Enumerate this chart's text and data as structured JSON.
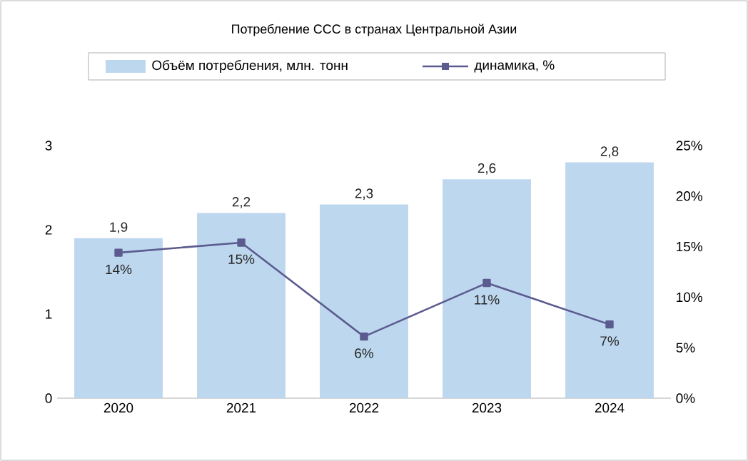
{
  "chart_data": {
    "type": "bar",
    "title": "Потребление ССС в странах Центральной Азии",
    "categories": [
      "2020",
      "2021",
      "2022",
      "2023",
      "2024"
    ],
    "series": [
      {
        "name": "Объём потребления, млн. тонн",
        "color": "#bdd7ee",
        "values": [
          1.9,
          2.2,
          2.3,
          2.6,
          2.8
        ],
        "value_labels": [
          "1,9",
          "2,2",
          "2,3",
          "2,6",
          "2,8"
        ]
      },
      {
        "name": "динамика, %",
        "type": "line",
        "axis": "y2",
        "color": "#5b5b8f",
        "marker": "square",
        "values": [
          14.4,
          15.4,
          6.1,
          11.4,
          7.3
        ],
        "value_labels": [
          "14%",
          "15%",
          "6%",
          "11%",
          "7%"
        ]
      }
    ],
    "ylim": [
      0,
      3
    ],
    "yticks": [
      0,
      1,
      2,
      3
    ],
    "y2lim": [
      0,
      25
    ],
    "y2ticks": [
      {
        "value": 0,
        "label": "0%"
      },
      {
        "value": 5,
        "label": "5%"
      },
      {
        "value": 10,
        "label": "10%"
      },
      {
        "value": 15,
        "label": "15%"
      },
      {
        "value": 20,
        "label": "20%"
      },
      {
        "value": 25,
        "label": "25%"
      }
    ],
    "legend": "top"
  }
}
